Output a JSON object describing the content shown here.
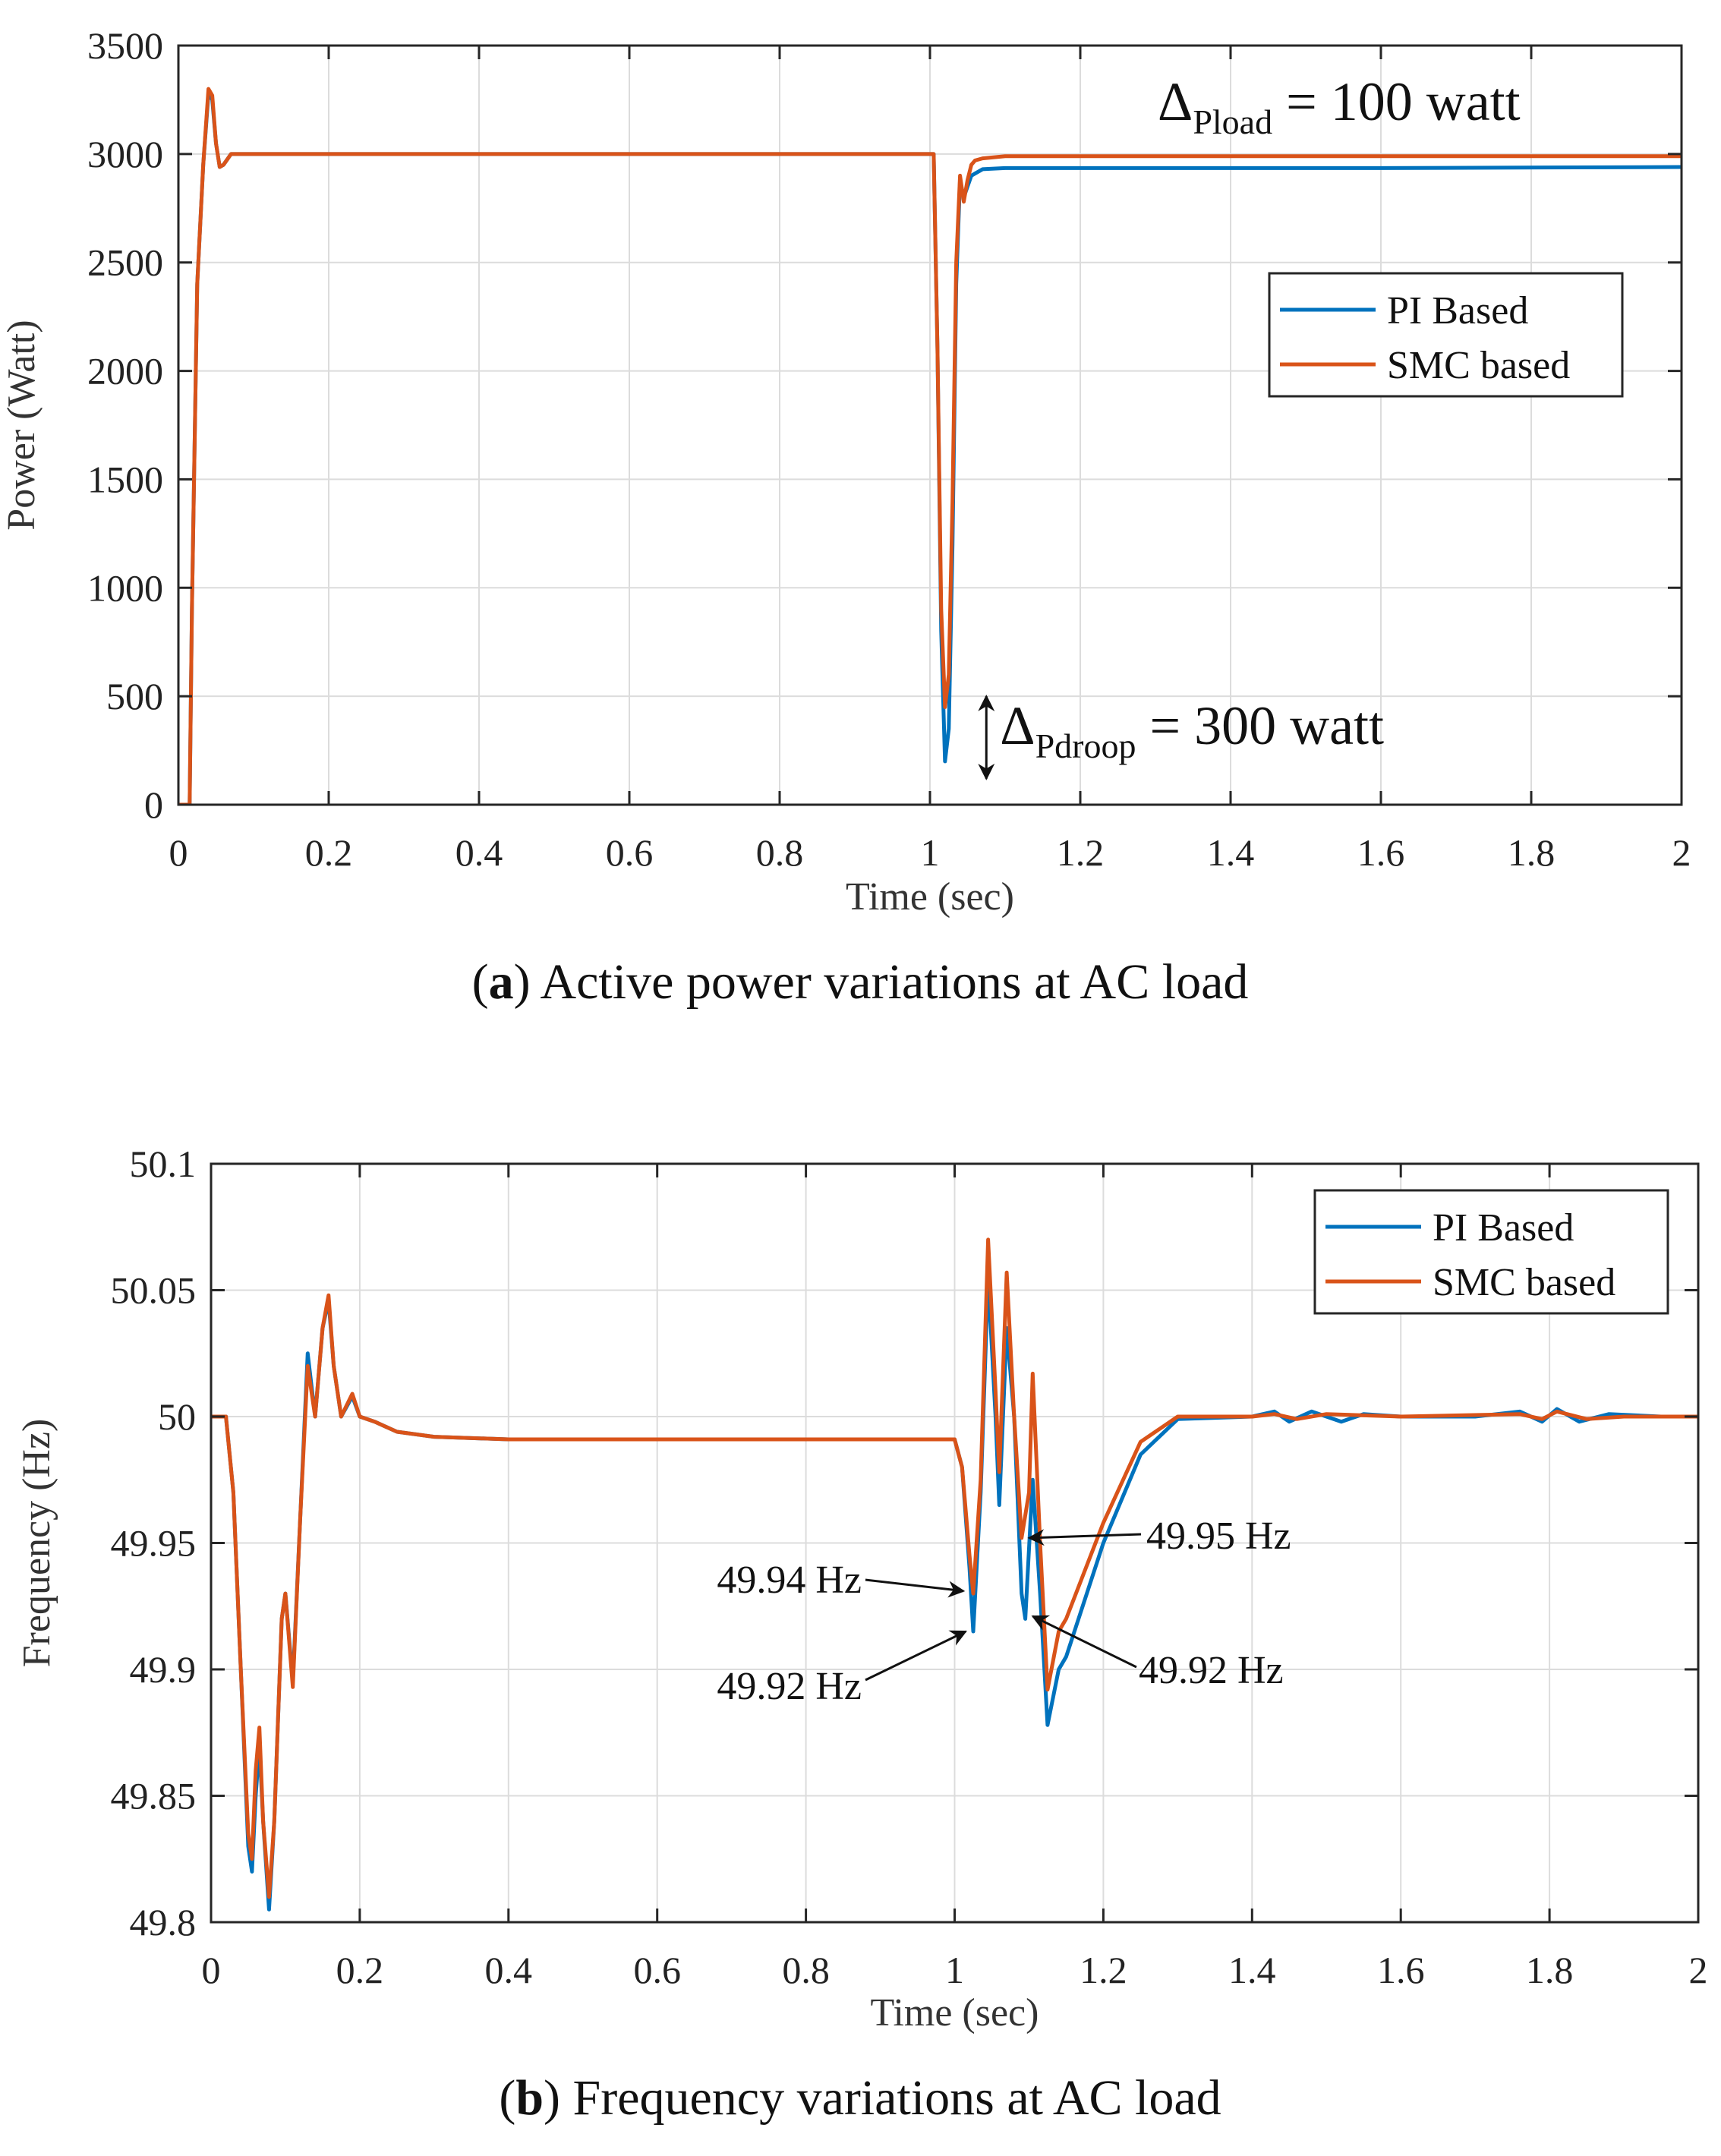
{
  "chart_data": [
    {
      "type": "line",
      "caption_letter": "a",
      "caption_text": ") Active power variations at AC load",
      "caption_open": "(",
      "xlabel": "Time (sec)",
      "ylabel": "Power (Watt)",
      "xlim": [
        0,
        2
      ],
      "ylim": [
        0,
        3500
      ],
      "xticks": [
        0,
        0.2,
        0.4,
        0.6,
        0.8,
        1,
        1.2,
        1.4,
        1.6,
        1.8,
        2
      ],
      "xtick_labels": [
        "0",
        "0.2",
        "0.4",
        "0.6",
        "0.8",
        "1",
        "1.2",
        "1.4",
        "1.6",
        "1.8",
        "2"
      ],
      "yticks": [
        0,
        500,
        1000,
        1500,
        2000,
        2500,
        3000,
        3500
      ],
      "ytick_labels": [
        "0",
        "500",
        "1000",
        "1500",
        "2000",
        "2500",
        "3000",
        "3500"
      ],
      "grid": true,
      "legend_placement": "center-right",
      "series": [
        {
          "name": "PI Based",
          "color": "#0072BD",
          "points": [
            [
              0,
              0
            ],
            [
              0.015,
              0
            ],
            [
              0.018,
              900
            ],
            [
              0.025,
              2400
            ],
            [
              0.033,
              2950
            ],
            [
              0.04,
              3280
            ],
            [
              0.045,
              3250
            ],
            [
              0.05,
              3050
            ],
            [
              0.055,
              2940
            ],
            [
              0.06,
              2950
            ],
            [
              0.07,
              3000
            ],
            [
              0.1,
              3000
            ],
            [
              0.5,
              3000
            ],
            [
              1.0,
              3000
            ],
            [
              1.005,
              3000
            ],
            [
              1.01,
              2100
            ],
            [
              1.015,
              800
            ],
            [
              1.02,
              200
            ],
            [
              1.025,
              350
            ],
            [
              1.03,
              1200
            ],
            [
              1.035,
              2400
            ],
            [
              1.04,
              2880
            ],
            [
              1.045,
              2800
            ],
            [
              1.05,
              2850
            ],
            [
              1.055,
              2900
            ],
            [
              1.06,
              2910
            ],
            [
              1.07,
              2930
            ],
            [
              1.1,
              2935
            ],
            [
              1.3,
              2935
            ],
            [
              1.6,
              2935
            ],
            [
              2.0,
              2940
            ]
          ]
        },
        {
          "name": "SMC based",
          "color": "#D95319",
          "points": [
            [
              0,
              0
            ],
            [
              0.015,
              0
            ],
            [
              0.018,
              900
            ],
            [
              0.025,
              2400
            ],
            [
              0.033,
              2950
            ],
            [
              0.04,
              3300
            ],
            [
              0.045,
              3270
            ],
            [
              0.05,
              3050
            ],
            [
              0.055,
              2940
            ],
            [
              0.06,
              2950
            ],
            [
              0.07,
              3000
            ],
            [
              0.1,
              3000
            ],
            [
              0.5,
              3000
            ],
            [
              1.0,
              3000
            ],
            [
              1.005,
              3000
            ],
            [
              1.01,
              2100
            ],
            [
              1.015,
              900
            ],
            [
              1.02,
              450
            ],
            [
              1.025,
              600
            ],
            [
              1.03,
              1400
            ],
            [
              1.035,
              2500
            ],
            [
              1.04,
              2900
            ],
            [
              1.045,
              2780
            ],
            [
              1.05,
              2880
            ],
            [
              1.055,
              2950
            ],
            [
              1.06,
              2970
            ],
            [
              1.07,
              2980
            ],
            [
              1.1,
              2990
            ],
            [
              1.5,
              2990
            ],
            [
              2.0,
              2990
            ]
          ]
        }
      ],
      "annotations": {
        "pload": {
          "delta": "Δ",
          "sub": "Pload",
          "rest": " = 100 watt"
        },
        "pdroop": {
          "delta": "Δ",
          "sub": "Pdroop",
          "rest": " = 300 watt",
          "arrow_from": 500,
          "arrow_to": 120,
          "x": 1.075
        }
      }
    },
    {
      "type": "line",
      "caption_letter": "b",
      "caption_text": ") Frequency variations at AC load",
      "caption_open": "(",
      "xlabel": "Time (sec)",
      "ylabel": "Frequency (Hz)",
      "xlim": [
        0,
        2
      ],
      "ylim": [
        49.8,
        50.1
      ],
      "xticks": [
        0,
        0.2,
        0.4,
        0.6,
        0.8,
        1,
        1.2,
        1.4,
        1.6,
        1.8,
        2
      ],
      "xtick_labels": [
        "0",
        "0.2",
        "0.4",
        "0.6",
        "0.8",
        "1",
        "1.2",
        "1.4",
        "1.6",
        "1.8",
        "2"
      ],
      "yticks": [
        49.8,
        49.85,
        49.9,
        49.95,
        50,
        50.05,
        50.1
      ],
      "ytick_labels": [
        "49.8",
        "49.85",
        "49.9",
        "49.95",
        "50",
        "50.05",
        "50.1"
      ],
      "grid": true,
      "legend_placement": "top-right",
      "series": [
        {
          "name": "PI Based",
          "color": "#0072BD",
          "points": [
            [
              0,
              50
            ],
            [
              0.02,
              50
            ],
            [
              0.03,
              49.97
            ],
            [
              0.04,
              49.9
            ],
            [
              0.05,
              49.83
            ],
            [
              0.055,
              49.82
            ],
            [
              0.06,
              49.85
            ],
            [
              0.065,
              49.87
            ],
            [
              0.07,
              49.84
            ],
            [
              0.078,
              49.805
            ],
            [
              0.085,
              49.84
            ],
            [
              0.095,
              49.92
            ],
            [
              0.1,
              49.93
            ],
            [
              0.11,
              49.895
            ],
            [
              0.12,
              49.96
            ],
            [
              0.13,
              50.025
            ],
            [
              0.14,
              50.0
            ],
            [
              0.15,
              50.035
            ],
            [
              0.158,
              50.046
            ],
            [
              0.165,
              50.02
            ],
            [
              0.175,
              50.0
            ],
            [
              0.19,
              50.008
            ],
            [
              0.2,
              50.0
            ],
            [
              0.22,
              49.998
            ],
            [
              0.25,
              49.994
            ],
            [
              0.3,
              49.992
            ],
            [
              0.4,
              49.991
            ],
            [
              0.6,
              49.991
            ],
            [
              0.8,
              49.991
            ],
            [
              1.0,
              49.991
            ],
            [
              1.01,
              49.98
            ],
            [
              1.02,
              49.94
            ],
            [
              1.025,
              49.915
            ],
            [
              1.035,
              49.97
            ],
            [
              1.045,
              50.055
            ],
            [
              1.055,
              50.0
            ],
            [
              1.06,
              49.965
            ],
            [
              1.07,
              50.035
            ],
            [
              1.08,
              50.0
            ],
            [
              1.09,
              49.93
            ],
            [
              1.095,
              49.92
            ],
            [
              1.105,
              49.975
            ],
            [
              1.115,
              49.93
            ],
            [
              1.125,
              49.878
            ],
            [
              1.14,
              49.9
            ],
            [
              1.15,
              49.905
            ],
            [
              1.2,
              49.95
            ],
            [
              1.25,
              49.985
            ],
            [
              1.3,
              49.999
            ],
            [
              1.4,
              50.0
            ],
            [
              1.43,
              50.002
            ],
            [
              1.45,
              49.998
            ],
            [
              1.48,
              50.002
            ],
            [
              1.52,
              49.998
            ],
            [
              1.55,
              50.001
            ],
            [
              1.6,
              50.0
            ],
            [
              1.7,
              50.0
            ],
            [
              1.76,
              50.002
            ],
            [
              1.79,
              49.998
            ],
            [
              1.81,
              50.003
            ],
            [
              1.84,
              49.998
            ],
            [
              1.88,
              50.001
            ],
            [
              1.95,
              50.0
            ],
            [
              2.0,
              50.0
            ]
          ]
        },
        {
          "name": "SMC based",
          "color": "#D95319",
          "points": [
            [
              0,
              50
            ],
            [
              0.02,
              50
            ],
            [
              0.03,
              49.97
            ],
            [
              0.04,
              49.9
            ],
            [
              0.05,
              49.835
            ],
            [
              0.055,
              49.825
            ],
            [
              0.06,
              49.86
            ],
            [
              0.065,
              49.877
            ],
            [
              0.07,
              49.84
            ],
            [
              0.078,
              49.81
            ],
            [
              0.085,
              49.84
            ],
            [
              0.095,
              49.92
            ],
            [
              0.1,
              49.93
            ],
            [
              0.11,
              49.893
            ],
            [
              0.12,
              49.96
            ],
            [
              0.13,
              50.02
            ],
            [
              0.14,
              50.0
            ],
            [
              0.15,
              50.035
            ],
            [
              0.158,
              50.048
            ],
            [
              0.165,
              50.02
            ],
            [
              0.175,
              50.0
            ],
            [
              0.19,
              50.009
            ],
            [
              0.2,
              50.0
            ],
            [
              0.22,
              49.998
            ],
            [
              0.25,
              49.994
            ],
            [
              0.3,
              49.992
            ],
            [
              0.4,
              49.991
            ],
            [
              0.6,
              49.991
            ],
            [
              0.8,
              49.991
            ],
            [
              1.0,
              49.991
            ],
            [
              1.01,
              49.98
            ],
            [
              1.02,
              49.945
            ],
            [
              1.025,
              49.93
            ],
            [
              1.035,
              49.975
            ],
            [
              1.045,
              50.07
            ],
            [
              1.055,
              50.01
            ],
            [
              1.06,
              49.978
            ],
            [
              1.07,
              50.057
            ],
            [
              1.08,
              50.0
            ],
            [
              1.09,
              49.952
            ],
            [
              1.1,
              49.97
            ],
            [
              1.105,
              50.017
            ],
            [
              1.115,
              49.95
            ],
            [
              1.125,
              49.892
            ],
            [
              1.14,
              49.915
            ],
            [
              1.15,
              49.92
            ],
            [
              1.2,
              49.958
            ],
            [
              1.25,
              49.99
            ],
            [
              1.3,
              50.0
            ],
            [
              1.4,
              50.0
            ],
            [
              1.43,
              50.001
            ],
            [
              1.46,
              49.999
            ],
            [
              1.5,
              50.001
            ],
            [
              1.6,
              50.0
            ],
            [
              1.76,
              50.001
            ],
            [
              1.79,
              49.999
            ],
            [
              1.81,
              50.002
            ],
            [
              1.85,
              49.999
            ],
            [
              1.9,
              50.0
            ],
            [
              2.0,
              50.0
            ]
          ]
        }
      ],
      "annotations": [
        {
          "text": "49.94 Hz",
          "side": "left",
          "target": [
            1.02,
            49.931
          ]
        },
        {
          "text": "49.92 Hz",
          "side": "left",
          "target": [
            1.023,
            49.915
          ]
        },
        {
          "text": "49.95 Hz",
          "side": "right",
          "target": [
            1.092,
            49.952
          ]
        },
        {
          "text": "49.92 Hz",
          "side": "right",
          "target": [
            1.097,
            49.921
          ]
        }
      ]
    }
  ]
}
